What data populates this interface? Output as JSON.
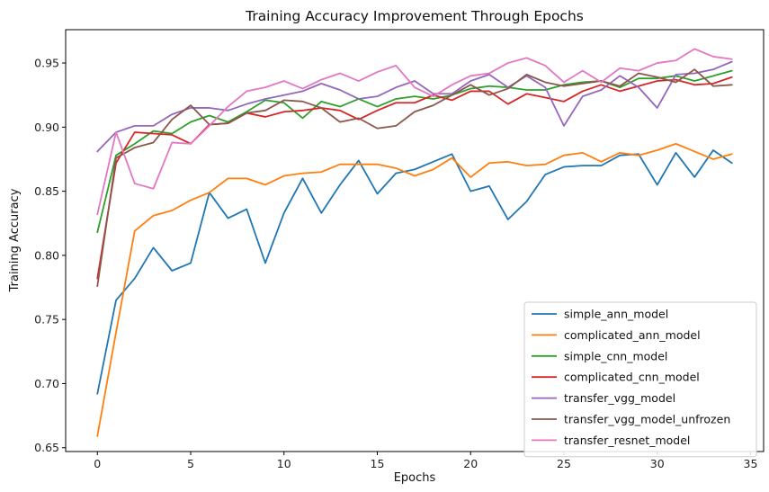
{
  "chart_data": {
    "type": "line",
    "title": "Training Accuracy Improvement Through Epochs",
    "xlabel": "Epochs",
    "ylabel": "Training Accuracy",
    "xlim": [
      -1.7,
      35.7
    ],
    "ylim": [
      0.647,
      0.976
    ],
    "x_ticks": [
      0,
      5,
      10,
      15,
      20,
      25,
      30,
      35
    ],
    "y_ticks": [
      0.65,
      0.7,
      0.75,
      0.8,
      0.85,
      0.9,
      0.95
    ],
    "grid": false,
    "legend_position": "lower-right",
    "x": [
      0,
      1,
      2,
      3,
      4,
      5,
      6,
      7,
      8,
      9,
      10,
      11,
      12,
      13,
      14,
      15,
      16,
      17,
      18,
      19,
      20,
      21,
      22,
      23,
      24,
      25,
      26,
      27,
      28,
      29,
      30,
      31,
      32,
      33,
      34
    ],
    "series": [
      {
        "name": "simple_ann_model",
        "color": "#1f77b4",
        "values": [
          0.692,
          0.765,
          0.782,
          0.806,
          0.788,
          0.794,
          0.849,
          0.829,
          0.836,
          0.794,
          0.833,
          0.86,
          0.833,
          0.855,
          0.874,
          0.848,
          0.864,
          0.867,
          0.873,
          0.879,
          0.85,
          0.854,
          0.828,
          0.842,
          0.863,
          0.869,
          0.87,
          0.87,
          0.878,
          0.879,
          0.855,
          0.88,
          0.861,
          0.882,
          0.872
        ]
      },
      {
        "name": "complicated_ann_model",
        "color": "#ff7f0e",
        "values": [
          0.659,
          0.74,
          0.819,
          0.831,
          0.835,
          0.843,
          0.849,
          0.86,
          0.86,
          0.855,
          0.862,
          0.864,
          0.865,
          0.871,
          0.871,
          0.871,
          0.868,
          0.862,
          0.867,
          0.876,
          0.861,
          0.872,
          0.873,
          0.87,
          0.871,
          0.878,
          0.88,
          0.873,
          0.88,
          0.878,
          0.882,
          0.887,
          0.881,
          0.875,
          0.879
        ]
      },
      {
        "name": "simple_cnn_model",
        "color": "#2ca02c",
        "values": [
          0.818,
          0.878,
          0.887,
          0.897,
          0.895,
          0.904,
          0.909,
          0.904,
          0.912,
          0.921,
          0.919,
          0.907,
          0.92,
          0.916,
          0.922,
          0.916,
          0.922,
          0.924,
          0.922,
          0.925,
          0.93,
          0.932,
          0.931,
          0.929,
          0.929,
          0.933,
          0.935,
          0.936,
          0.931,
          0.938,
          0.938,
          0.94,
          0.936,
          0.94,
          0.944
        ]
      },
      {
        "name": "complicated_cnn_model",
        "color": "#d62728",
        "values": [
          0.782,
          0.872,
          0.896,
          0.895,
          0.894,
          0.887,
          0.902,
          0.903,
          0.911,
          0.908,
          0.912,
          0.913,
          0.915,
          0.913,
          0.906,
          0.913,
          0.919,
          0.919,
          0.925,
          0.921,
          0.928,
          0.928,
          0.918,
          0.926,
          0.923,
          0.92,
          0.928,
          0.933,
          0.928,
          0.932,
          0.936,
          0.937,
          0.933,
          0.934,
          0.939
        ]
      },
      {
        "name": "transfer_vgg_model",
        "color": "#9467bd",
        "values": [
          0.881,
          0.896,
          0.901,
          0.901,
          0.91,
          0.915,
          0.915,
          0.913,
          0.918,
          0.922,
          0.925,
          0.928,
          0.934,
          0.929,
          0.922,
          0.924,
          0.931,
          0.936,
          0.926,
          0.926,
          0.936,
          0.941,
          0.931,
          0.94,
          0.931,
          0.901,
          0.924,
          0.929,
          0.94,
          0.931,
          0.915,
          0.941,
          0.942,
          0.945,
          0.951
        ]
      },
      {
        "name": "transfer_vgg_model_unfrozen",
        "color": "#8c564b",
        "values": [
          0.776,
          0.876,
          0.884,
          0.888,
          0.906,
          0.917,
          0.902,
          0.903,
          0.911,
          0.913,
          0.921,
          0.92,
          0.915,
          0.904,
          0.907,
          0.899,
          0.901,
          0.912,
          0.917,
          0.925,
          0.933,
          0.925,
          0.93,
          0.941,
          0.935,
          0.932,
          0.934,
          0.936,
          0.932,
          0.942,
          0.939,
          0.935,
          0.945,
          0.932,
          0.933
        ]
      },
      {
        "name": "transfer_resnet_model",
        "color": "#e377c2",
        "values": [
          0.832,
          0.896,
          0.856,
          0.852,
          0.888,
          0.887,
          0.901,
          0.916,
          0.928,
          0.931,
          0.936,
          0.93,
          0.937,
          0.942,
          0.936,
          0.943,
          0.948,
          0.931,
          0.924,
          0.933,
          0.94,
          0.942,
          0.95,
          0.954,
          0.948,
          0.935,
          0.944,
          0.935,
          0.946,
          0.944,
          0.95,
          0.952,
          0.961,
          0.955,
          0.953
        ]
      }
    ]
  }
}
